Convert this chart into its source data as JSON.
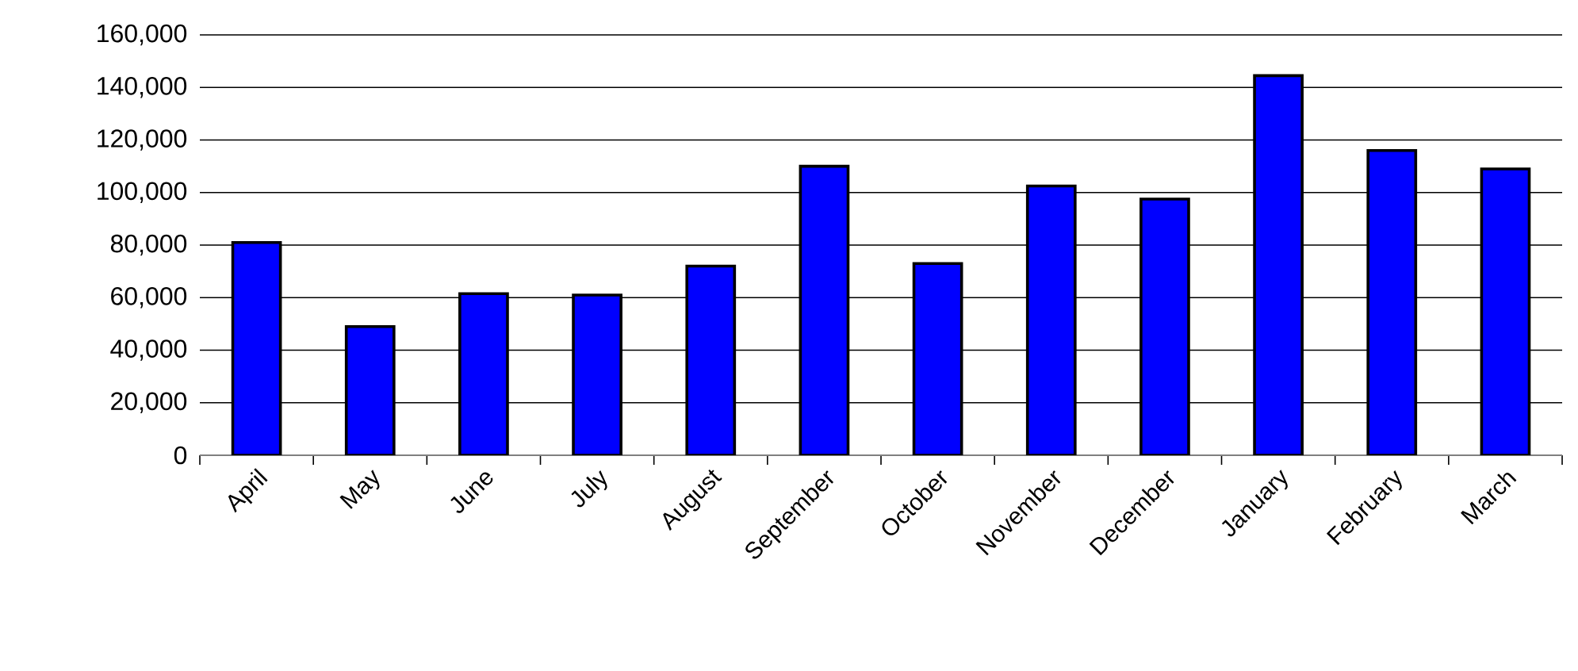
{
  "chart_data": {
    "type": "bar",
    "categories": [
      "April",
      "May",
      "June",
      "July",
      "August",
      "September",
      "October",
      "November",
      "December",
      "January",
      "February",
      "March"
    ],
    "values": [
      81000,
      49000,
      61500,
      61000,
      72000,
      110000,
      73000,
      102500,
      97500,
      144500,
      116000,
      109000
    ],
    "color": "#0000ff",
    "ylim": [
      0,
      160000
    ],
    "yticks": [
      {
        "value": 0,
        "label": "0"
      },
      {
        "value": 20000,
        "label": "20,000"
      },
      {
        "value": 40000,
        "label": "40,000"
      },
      {
        "value": 60000,
        "label": "60,000"
      },
      {
        "value": 80000,
        "label": "80,000"
      },
      {
        "value": 100000,
        "label": "100,000"
      },
      {
        "value": 120000,
        "label": "120,000"
      },
      {
        "value": 140000,
        "label": "140,000"
      },
      {
        "value": 160000,
        "label": "160,000"
      }
    ],
    "grid": "y"
  }
}
